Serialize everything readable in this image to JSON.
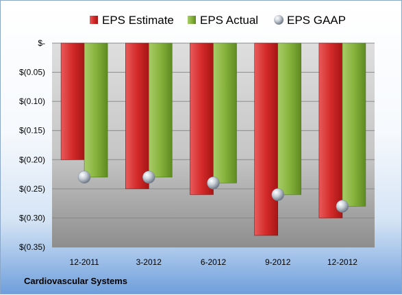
{
  "chart_data": {
    "type": "bar",
    "categories": [
      "12-2011",
      "3-2012",
      "6-2012",
      "9-2012",
      "12-2012"
    ],
    "series": [
      {
        "name": "EPS Estimate",
        "values": [
          -0.2,
          -0.25,
          -0.26,
          -0.33,
          -0.3
        ],
        "color": "#d42a2a"
      },
      {
        "name": "EPS Actual",
        "values": [
          -0.23,
          -0.23,
          -0.24,
          -0.26,
          -0.28
        ],
        "color": "#86b33c"
      },
      {
        "name": "EPS GAAP",
        "values": [
          -0.23,
          -0.23,
          -0.24,
          -0.26,
          -0.28
        ],
        "color": "#b9c2cc",
        "marker": "sphere"
      }
    ],
    "yticks": [
      0,
      -0.05,
      -0.1,
      -0.15,
      -0.2,
      -0.25,
      -0.3,
      -0.35
    ],
    "ytick_labels": [
      "$-",
      "$(0.05)",
      "$(0.10)",
      "$(0.15)",
      "$(0.20)",
      "$(0.25)",
      "$(0.30)",
      "$(0.35)"
    ],
    "ylim": [
      -0.35,
      0
    ],
    "grid": true,
    "legend_position": "top"
  },
  "footer": {
    "company": "Cardiovascular Systems"
  }
}
